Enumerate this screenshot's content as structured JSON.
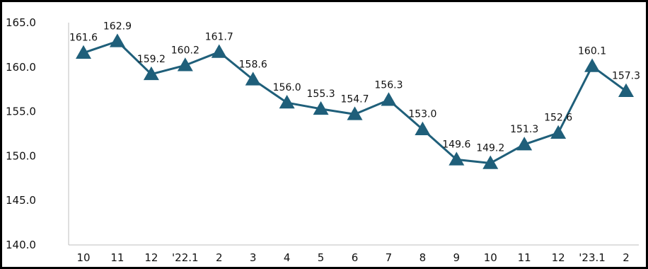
{
  "chart_data": {
    "type": "line",
    "title": "",
    "xlabel": "",
    "ylabel": "",
    "categories": [
      "10",
      "11",
      "12",
      "'22.1",
      "2",
      "3",
      "4",
      "5",
      "6",
      "7",
      "8",
      "9",
      "10",
      "11",
      "12",
      "'23.1",
      "2"
    ],
    "series": [
      {
        "values": [
          161.6,
          162.9,
          159.2,
          160.2,
          161.7,
          158.6,
          156.0,
          155.3,
          154.7,
          156.3,
          153.0,
          149.6,
          149.2,
          151.3,
          152.6,
          160.1,
          157.3
        ],
        "color": "#1f5f7a",
        "marker": "triangle"
      }
    ],
    "value_labels": [
      "161.6",
      "162.9",
      "159.2",
      "160.2",
      "161.7",
      "158.6",
      "156.0",
      "155.3",
      "154.7",
      "156.3",
      "153.0",
      "149.6",
      "149.2",
      "151.3",
      "152.6",
      "160.1",
      "157.3"
    ],
    "ylim": [
      140,
      165
    ],
    "yticks": [
      "140.0",
      "145.0",
      "150.0",
      "155.0",
      "160.0",
      "165.0"
    ],
    "grid": false,
    "legend": "none"
  }
}
